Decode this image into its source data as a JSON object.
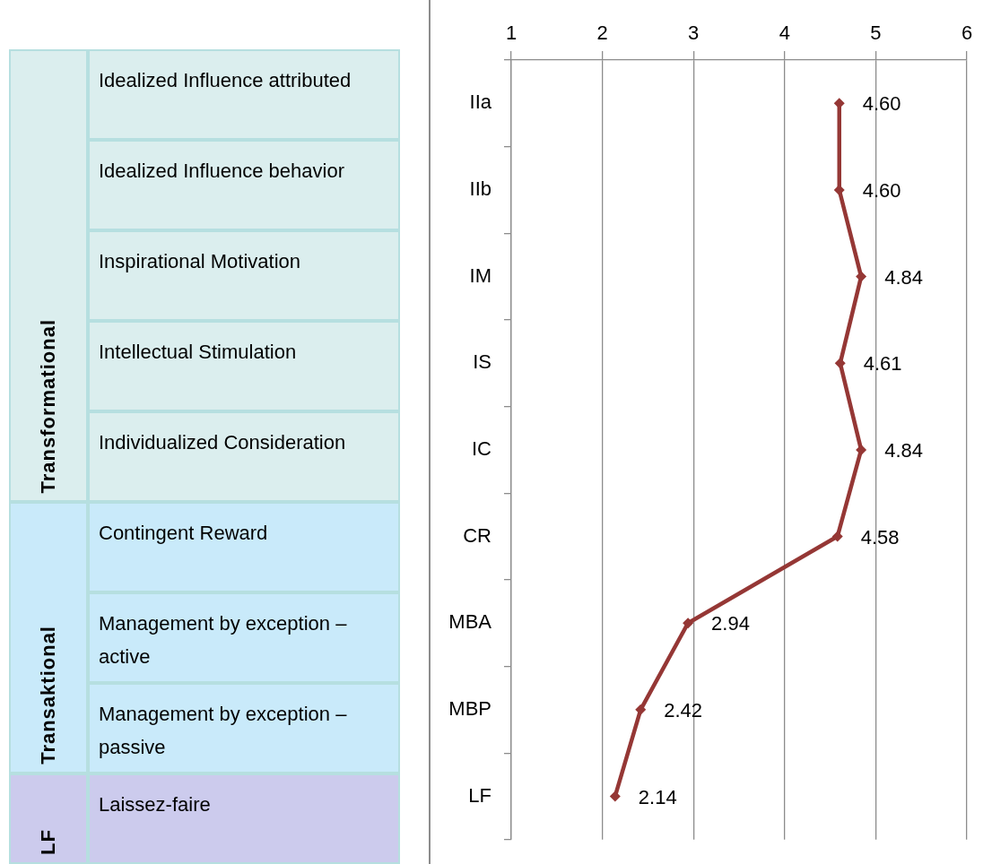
{
  "chart_data": {
    "type": "line",
    "orientation": "horizontal",
    "categories": [
      "IIa",
      "IIb",
      "IM",
      "IS",
      "IC",
      "CR",
      "MBA",
      "MBP",
      "LF"
    ],
    "values": [
      4.6,
      4.6,
      4.84,
      4.61,
      4.84,
      4.58,
      2.94,
      2.42,
      2.14
    ],
    "value_labels": [
      "4.60",
      "4.60",
      "4.84",
      "4.61",
      "4.84",
      "4.58",
      "2.94",
      "2.42",
      "2.14"
    ],
    "color": "#953735",
    "marker": "diamond",
    "xlim": [
      1,
      6
    ],
    "xticks": [
      1,
      2,
      3,
      4,
      5,
      6
    ],
    "grid": "x",
    "annotations": [
      "Idealized Influence attributed",
      "Idealized Influence behavior",
      "Inspirational Motivation",
      "Intellectual Stimulation",
      "Individualized Consideration",
      "Contingent Reward",
      "Management by exception – active",
      "Management by exception – passive",
      "Laissez-faire",
      "Transformational",
      "Transaktional",
      "LF"
    ]
  }
}
